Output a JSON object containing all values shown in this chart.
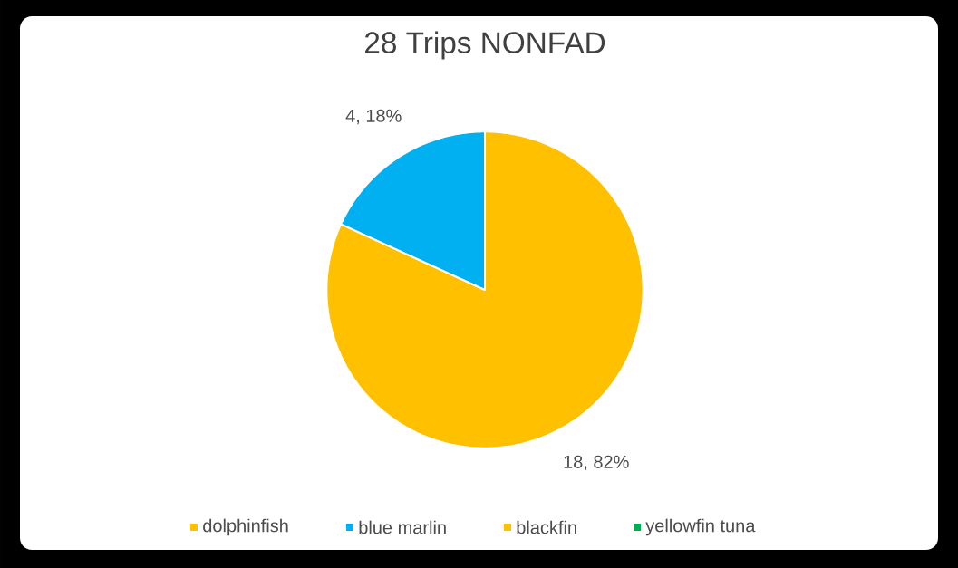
{
  "chart_data": {
    "type": "pie",
    "title": "28 Trips NONFAD",
    "categories": [
      "dolphinfish",
      "blue marlin",
      "blackfin",
      "yellowfin tuna"
    ],
    "values": [
      18,
      4,
      0,
      0
    ],
    "colors": [
      "#ffc000",
      "#00b0f0",
      "#ffc000",
      "#00b050"
    ],
    "value_labels": [
      "18, 82%",
      "4, 18%",
      null,
      null
    ],
    "legend": "bottom"
  }
}
